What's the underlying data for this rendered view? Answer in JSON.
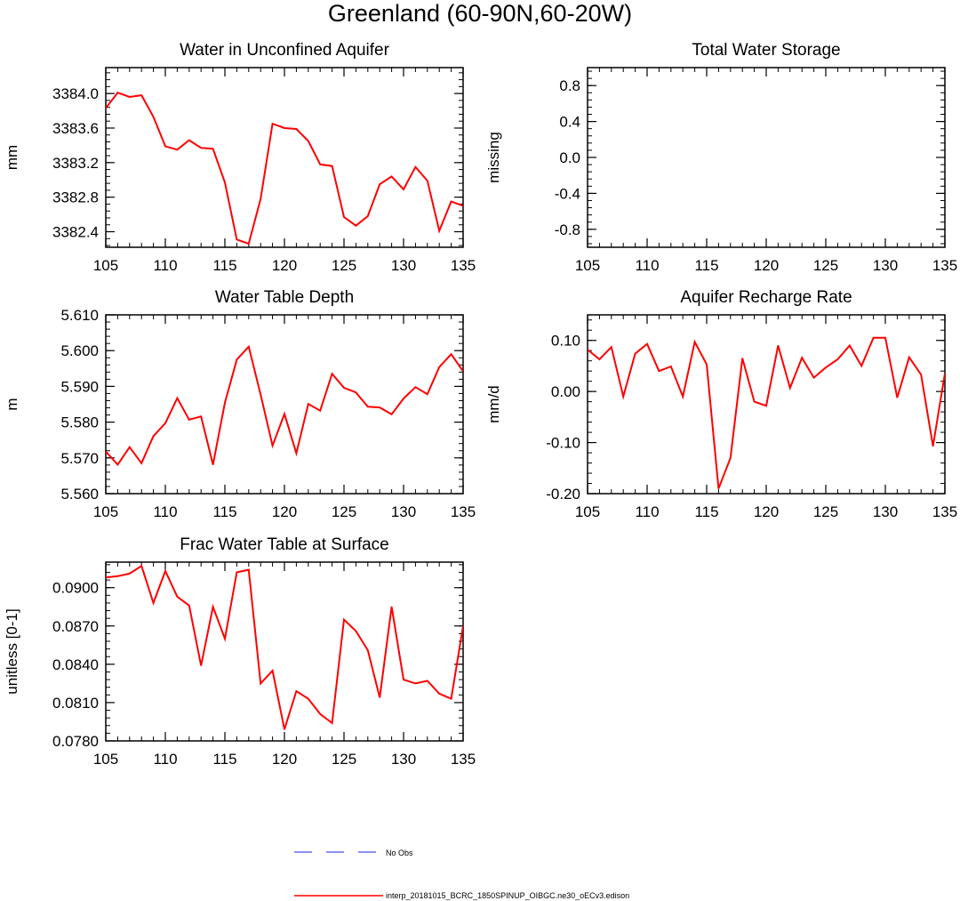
{
  "title": "Greenland (60-90N,60-20W)",
  "colors": {
    "series": "#ff0000",
    "obs": "#6a6aee",
    "axis": "#000000"
  },
  "legend": {
    "obs_label": "No Obs",
    "model_label": "interp_20181015_BCRC_1850SPINUP_OIBGC.ne30_oECv3.edison"
  },
  "chart_data": [
    {
      "id": "unconfined",
      "type": "line",
      "title": "Water in Unconfined Aquifer",
      "xlabel": "",
      "ylabel": "mm",
      "xlim": [
        105,
        135
      ],
      "ylim": [
        3382.22,
        3384.3
      ],
      "xticks": [
        105,
        110,
        115,
        120,
        125,
        130,
        135
      ],
      "yticks": [
        "3382.4",
        "3382.8",
        "3383.2",
        "3383.6",
        "3384.0"
      ],
      "x": [
        105,
        106,
        107,
        108,
        109,
        110,
        111,
        112,
        113,
        114,
        115,
        116,
        117,
        118,
        119,
        120,
        121,
        122,
        123,
        124,
        125,
        126,
        127,
        128,
        129,
        130,
        131,
        132,
        133,
        134,
        135
      ],
      "values": [
        3383.83,
        3384.01,
        3383.96,
        3383.98,
        3383.73,
        3383.39,
        3383.35,
        3383.46,
        3383.37,
        3383.36,
        3382.97,
        3382.31,
        3382.26,
        3382.78,
        3383.65,
        3383.6,
        3383.59,
        3383.45,
        3383.18,
        3383.16,
        3382.57,
        3382.47,
        3382.58,
        3382.95,
        3383.04,
        3382.89,
        3383.15,
        3382.99,
        3382.41,
        3382.75,
        3382.7
      ]
    },
    {
      "id": "tws",
      "type": "line",
      "title": "Total Water Storage",
      "xlabel": "",
      "ylabel": "missing",
      "xlim": [
        105,
        135
      ],
      "ylim": [
        -1,
        1
      ],
      "xticks": [
        105,
        110,
        115,
        120,
        125,
        130,
        135
      ],
      "yticks": [
        "-0.8",
        "-0.4",
        "0.0",
        "0.4",
        "0.8"
      ],
      "x": [],
      "values": []
    },
    {
      "id": "wtd",
      "type": "line",
      "title": "Water Table Depth",
      "xlabel": "",
      "ylabel": "m",
      "xlim": [
        105,
        135
      ],
      "ylim": [
        5.56,
        5.61
      ],
      "xticks": [
        105,
        110,
        115,
        120,
        125,
        130,
        135
      ],
      "yticks": [
        "5.560",
        "5.570",
        "5.580",
        "5.590",
        "5.600",
        "5.610"
      ],
      "x": [
        105,
        106,
        107,
        108,
        109,
        110,
        111,
        112,
        113,
        114,
        115,
        116,
        117,
        118,
        119,
        120,
        121,
        122,
        123,
        124,
        125,
        126,
        127,
        128,
        129,
        130,
        131,
        132,
        133,
        134,
        135
      ],
      "values": [
        5.5718,
        5.5681,
        5.573,
        5.5685,
        5.5761,
        5.5797,
        5.5867,
        5.5807,
        5.5816,
        5.5681,
        5.5854,
        5.5975,
        5.6011,
        5.5877,
        5.5734,
        5.5823,
        5.5713,
        5.5851,
        5.5832,
        5.5935,
        5.5896,
        5.5883,
        5.5843,
        5.5841,
        5.5822,
        5.5866,
        5.5898,
        5.5878,
        5.5954,
        5.599,
        5.5942
      ]
    },
    {
      "id": "recharge",
      "type": "line",
      "title": "Aquifer Recharge Rate",
      "xlabel": "",
      "ylabel": "mm/d",
      "xlim": [
        105,
        135
      ],
      "ylim": [
        -0.2,
        0.15
      ],
      "xticks": [
        105,
        110,
        115,
        120,
        125,
        130,
        135
      ],
      "yticks": [
        "-0.20",
        "-0.10",
        "0.00",
        "0.10"
      ],
      "x": [
        105,
        106,
        107,
        108,
        109,
        110,
        111,
        112,
        113,
        114,
        115,
        116,
        117,
        118,
        119,
        120,
        121,
        122,
        123,
        124,
        125,
        126,
        127,
        128,
        129,
        130,
        131,
        132,
        133,
        134,
        135
      ],
      "values": [
        0.082,
        0.063,
        0.087,
        -0.01,
        0.074,
        0.093,
        0.04,
        0.049,
        -0.01,
        0.097,
        0.053,
        -0.19,
        -0.13,
        0.065,
        -0.02,
        -0.028,
        0.09,
        0.007,
        0.066,
        0.027,
        0.047,
        0.063,
        0.09,
        0.05,
        0.105,
        0.105,
        -0.012,
        0.067,
        0.033,
        -0.107,
        0.035
      ]
    },
    {
      "id": "frac",
      "type": "line",
      "title": "Frac Water Table at Surface",
      "xlabel": "",
      "ylabel": "unitless [0-1]",
      "xlim": [
        105,
        135
      ],
      "ylim": [
        0.078,
        0.092
      ],
      "xticks": [
        105,
        110,
        115,
        120,
        125,
        130,
        135
      ],
      "yticks": [
        "0.0780",
        "0.0810",
        "0.0840",
        "0.0870",
        "0.0900"
      ],
      "x": [
        105,
        106,
        107,
        108,
        109,
        110,
        111,
        112,
        113,
        114,
        115,
        116,
        117,
        118,
        119,
        120,
        121,
        122,
        123,
        124,
        125,
        126,
        127,
        128,
        129,
        130,
        131,
        132,
        133,
        134,
        135
      ],
      "values": [
        0.0908,
        0.0909,
        0.0911,
        0.0917,
        0.0888,
        0.0913,
        0.0893,
        0.0886,
        0.0839,
        0.0885,
        0.086,
        0.0912,
        0.0914,
        0.0825,
        0.0835,
        0.0789,
        0.0819,
        0.0813,
        0.0801,
        0.0794,
        0.0875,
        0.0866,
        0.0851,
        0.0814,
        0.0885,
        0.0828,
        0.0825,
        0.0827,
        0.0817,
        0.0813,
        0.087
      ]
    }
  ]
}
